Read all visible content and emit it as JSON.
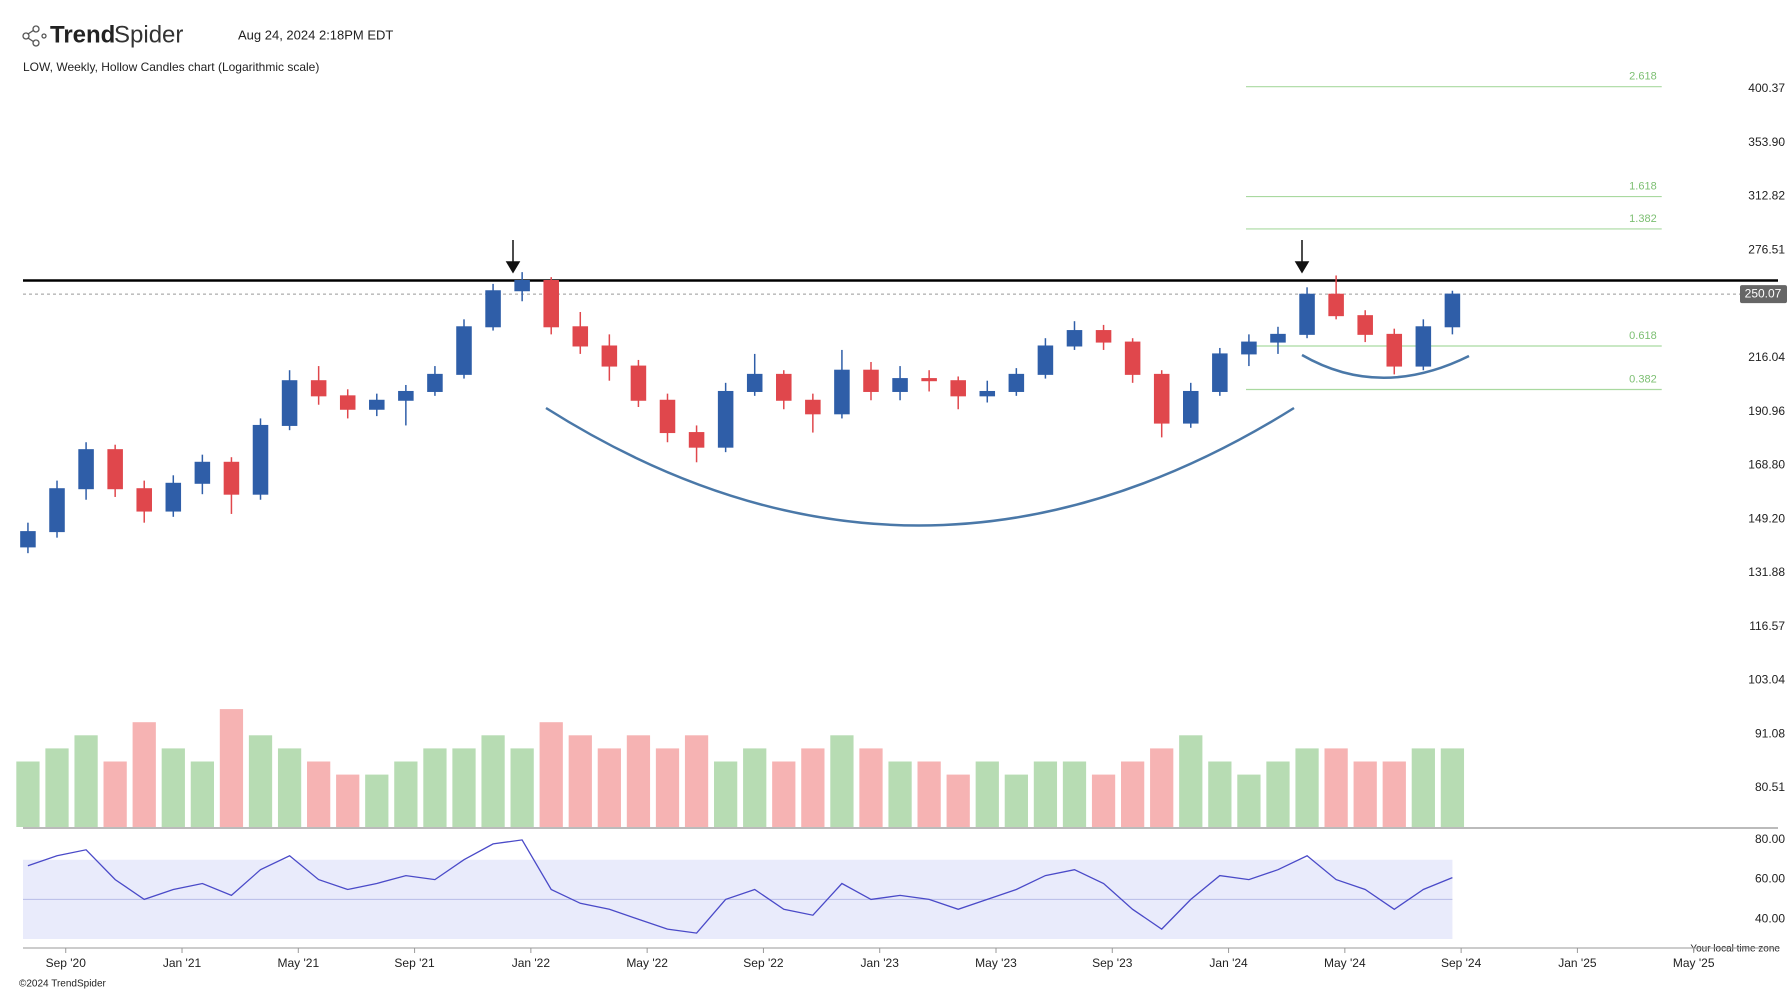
{
  "header": {
    "brand_bold": "Trend",
    "brand_light": "Spider",
    "timestamp": "Aug 24, 2024 2:18PM EDT",
    "subtitle": "LOW, Weekly, Hollow Candles chart (Logarithmic scale)"
  },
  "footer": {
    "timezone_note": "Your local time zone",
    "copyright": "©2024 TrendSpider"
  },
  "chart_data": {
    "type": "candlestick",
    "log_scale": true,
    "up_color": "#2f5ea8",
    "down_color": "#e0474c",
    "x": [
      -1.3,
      -0.3,
      0.7,
      1.7,
      2.7,
      3.7,
      4.7,
      5.7,
      6.7,
      7.7,
      8.7,
      9.7,
      10.7,
      11.7,
      12.7,
      13.7,
      14.7,
      15.7,
      16.7,
      17.7,
      18.7,
      19.7,
      20.7,
      21.7,
      22.7,
      23.7,
      24.7,
      25.7,
      26.7,
      27.7,
      28.7,
      29.7,
      30.7,
      31.7,
      32.7,
      33.7,
      34.7,
      35.7,
      36.7,
      37.7,
      38.7,
      39.7,
      40.7,
      41.7,
      42.7,
      43.7,
      44.7,
      45.7,
      46.7,
      47.7
    ],
    "ohlc": [
      [
        140,
        148,
        138,
        145
      ],
      [
        145,
        163,
        143,
        160
      ],
      [
        160,
        178,
        156,
        175
      ],
      [
        175,
        177,
        157,
        160
      ],
      [
        160,
        163,
        148,
        152
      ],
      [
        152,
        165,
        150,
        162
      ],
      [
        162,
        173,
        158,
        170
      ],
      [
        170,
        172,
        151,
        158
      ],
      [
        158,
        188,
        156,
        185
      ],
      [
        185,
        210,
        183,
        205
      ],
      [
        205,
        212,
        194,
        198
      ],
      [
        198,
        201,
        188,
        192
      ],
      [
        192,
        199,
        189,
        196
      ],
      [
        196,
        203,
        185,
        200
      ],
      [
        200,
        212,
        198,
        208
      ],
      [
        208,
        236,
        206,
        232
      ],
      [
        232,
        256,
        230,
        252
      ],
      [
        252,
        263,
        246,
        258
      ],
      [
        258,
        260,
        228,
        232
      ],
      [
        232,
        240,
        218,
        222
      ],
      [
        222,
        228,
        205,
        212
      ],
      [
        212,
        215,
        193,
        196
      ],
      [
        196,
        199,
        178,
        182
      ],
      [
        182,
        185,
        170,
        176
      ],
      [
        176,
        204,
        174,
        200
      ],
      [
        200,
        218,
        198,
        208
      ],
      [
        208,
        210,
        192,
        196
      ],
      [
        196,
        199,
        182,
        190
      ],
      [
        190,
        220,
        188,
        210
      ],
      [
        210,
        214,
        196,
        200
      ],
      [
        200,
        212,
        196,
        206
      ],
      [
        206,
        210,
        200,
        205
      ],
      [
        205,
        207,
        192,
        198
      ],
      [
        198,
        205,
        195,
        200
      ],
      [
        200,
        211,
        198,
        208
      ],
      [
        208,
        226,
        206,
        222
      ],
      [
        222,
        235,
        220,
        230
      ],
      [
        230,
        233,
        220,
        224
      ],
      [
        224,
        226,
        204,
        208
      ],
      [
        208,
        210,
        180,
        186
      ],
      [
        186,
        204,
        184,
        200
      ],
      [
        200,
        221,
        198,
        218
      ],
      [
        218,
        228,
        212,
        224
      ],
      [
        224,
        232,
        218,
        228
      ],
      [
        228,
        254,
        226,
        250
      ],
      [
        250,
        261,
        236,
        238
      ],
      [
        238,
        241,
        224,
        228
      ],
      [
        228,
        231,
        208,
        212
      ],
      [
        212,
        236,
        210,
        232
      ],
      [
        232,
        252,
        228,
        250.07
      ]
    ],
    "xlim": [
      -1.47,
      58.9
    ],
    "xticks": [
      {
        "value": 0,
        "label": "Sep '20"
      },
      {
        "value": 4,
        "label": "Jan '21"
      },
      {
        "value": 8,
        "label": "May '21"
      },
      {
        "value": 12,
        "label": "Sep '21"
      },
      {
        "value": 16,
        "label": "Jan '22"
      },
      {
        "value": 20,
        "label": "May '22"
      },
      {
        "value": 24,
        "label": "Sep '22"
      },
      {
        "value": 28,
        "label": "Jan '23"
      },
      {
        "value": 32,
        "label": "May '23"
      },
      {
        "value": 36,
        "label": "Sep '23"
      },
      {
        "value": 40,
        "label": "Jan '24"
      },
      {
        "value": 44,
        "label": "May '24"
      },
      {
        "value": 48,
        "label": "Sep '24"
      },
      {
        "value": 52,
        "label": "Jan '25"
      },
      {
        "value": 56,
        "label": "May '25"
      }
    ],
    "ylim": [
      80.51,
      400.37
    ],
    "yticks": [
      400.37,
      {
        "value": 353.9,
        "label": "353.90"
      },
      312.82,
      276.51,
      216.04,
      190.96,
      {
        "value": 168.8,
        "label": "168.80"
      },
      {
        "value": 149.2,
        "label": "149.20"
      },
      131.88,
      116.57,
      103.04,
      91.08,
      80.51
    ],
    "last_price": 250.07,
    "resistance": 258,
    "fib_color": "#a9d9a0",
    "fib_x": [
      40.6,
      54.9
    ],
    "fib_levels": [
      {
        "label": "2.618",
        "value": 402.5
      },
      {
        "label": "1.618",
        "value": 312.8
      },
      {
        "label": "1.382",
        "value": 290.4
      },
      {
        "label": "0.618",
        "value": 222
      },
      {
        "label": "0.382",
        "value": 200.9
      }
    ],
    "volume": {
      "values": [
        5,
        6,
        7,
        5,
        8,
        6,
        5,
        9,
        7,
        6,
        5,
        4,
        4,
        5,
        6,
        6,
        7,
        6,
        8,
        7,
        6,
        7,
        6,
        7,
        5,
        6,
        5,
        6,
        7,
        6,
        5,
        5,
        4,
        5,
        4,
        5,
        5,
        4,
        5,
        6,
        7,
        5,
        4,
        5,
        6,
        6,
        5,
        5,
        6,
        6
      ],
      "ylim": [
        0,
        10
      ],
      "up_color": "#b7dcb3",
      "down_color": "#f6b3b3"
    },
    "rsi": {
      "values": [
        67,
        72,
        75,
        60,
        50,
        55,
        58,
        52,
        65,
        72,
        60,
        55,
        58,
        62,
        60,
        70,
        78,
        80,
        55,
        48,
        45,
        40,
        35,
        33,
        50,
        55,
        45,
        42,
        58,
        50,
        52,
        50,
        45,
        50,
        55,
        62,
        65,
        58,
        45,
        35,
        50,
        62,
        60,
        65,
        72,
        60,
        55,
        45,
        55,
        61
      ],
      "color": "#4a4ac8",
      "band": [
        30,
        70
      ],
      "band_color": "#e9ebfb",
      "mid": 50,
      "ylim": [
        30,
        83.5
      ],
      "yticks": [
        {
          "value": 80,
          "label": "80.00"
        },
        {
          "value": 60,
          "label": "60.00"
        },
        {
          "value": 40,
          "label": "40.00"
        }
      ]
    }
  }
}
